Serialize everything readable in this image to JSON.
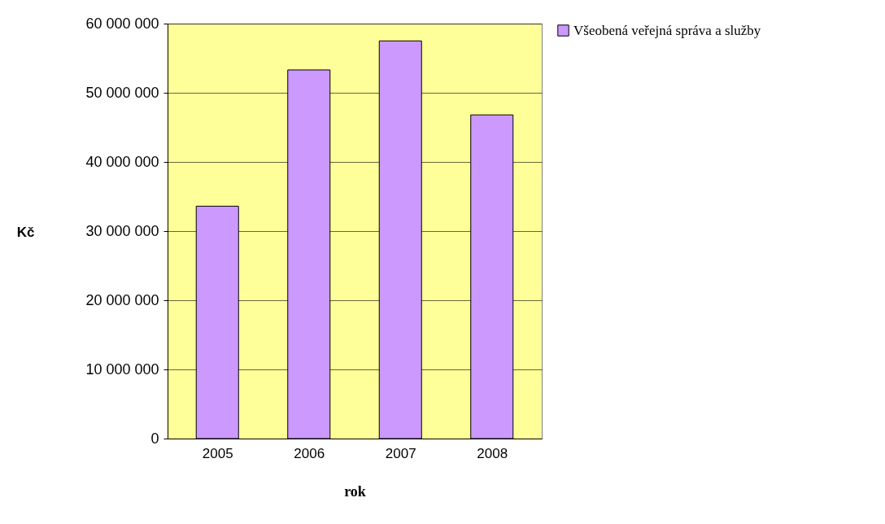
{
  "chart_data": {
    "type": "bar",
    "xlabel": "rok",
    "ylabel": "Kč",
    "categories": [
      "2005",
      "2006",
      "2007",
      "2008"
    ],
    "series": [
      {
        "name": "Všeobená veřejná správa a služby",
        "color": "#cc99ff",
        "values": [
          33600000,
          53300000,
          57500000,
          46800000
        ]
      }
    ],
    "ylim": [
      0,
      60000000
    ],
    "yticks": [
      0,
      {
        "value": 10000000,
        "label": "10 000 000"
      },
      {
        "value": 20000000,
        "label": "20 000 000"
      },
      {
        "value": 30000000,
        "label": "30 000 000"
      },
      {
        "value": 40000000,
        "label": "40 000 000"
      },
      {
        "value": 50000000,
        "label": "50 000 000"
      },
      {
        "value": 60000000,
        "label": "60 000 000"
      }
    ],
    "grid": "y",
    "legend": "right"
  }
}
